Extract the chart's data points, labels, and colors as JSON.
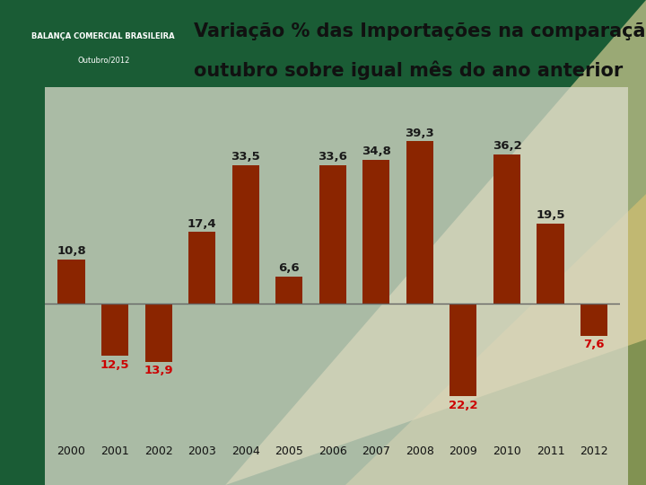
{
  "years": [
    "2000",
    "2001",
    "2002",
    "2003",
    "2004",
    "2005",
    "2006",
    "2007",
    "2008",
    "2009",
    "2010",
    "2011",
    "2012"
  ],
  "values": [
    10.8,
    -12.5,
    -13.9,
    17.4,
    33.5,
    6.6,
    33.6,
    34.8,
    39.3,
    -22.2,
    36.2,
    19.5,
    -7.6
  ],
  "bar_color": "#8B2500",
  "negative_label_color": "#CC0000",
  "positive_label_color": "#1a1a1a",
  "title_line1": "Variação % das Importações na comparação de",
  "title_line2": "outubro sobre igual mês do ano anterior",
  "header_text1": "BALANÇA COMERCIAL BRASILEIRA",
  "header_text2": "Outubro/2012",
  "header_bg_color": "#1C3A6B",
  "bg_left_color": "#1A5C35",
  "bg_right_color": "#F5E8C0",
  "chart_overlay_color": "#D8D8C8",
  "ylim_min": -32,
  "ylim_max": 50,
  "zero_line_color": "#666666",
  "label_fontsize": 9.5,
  "title_fontsize": 15,
  "axis_label_fontsize": 9
}
